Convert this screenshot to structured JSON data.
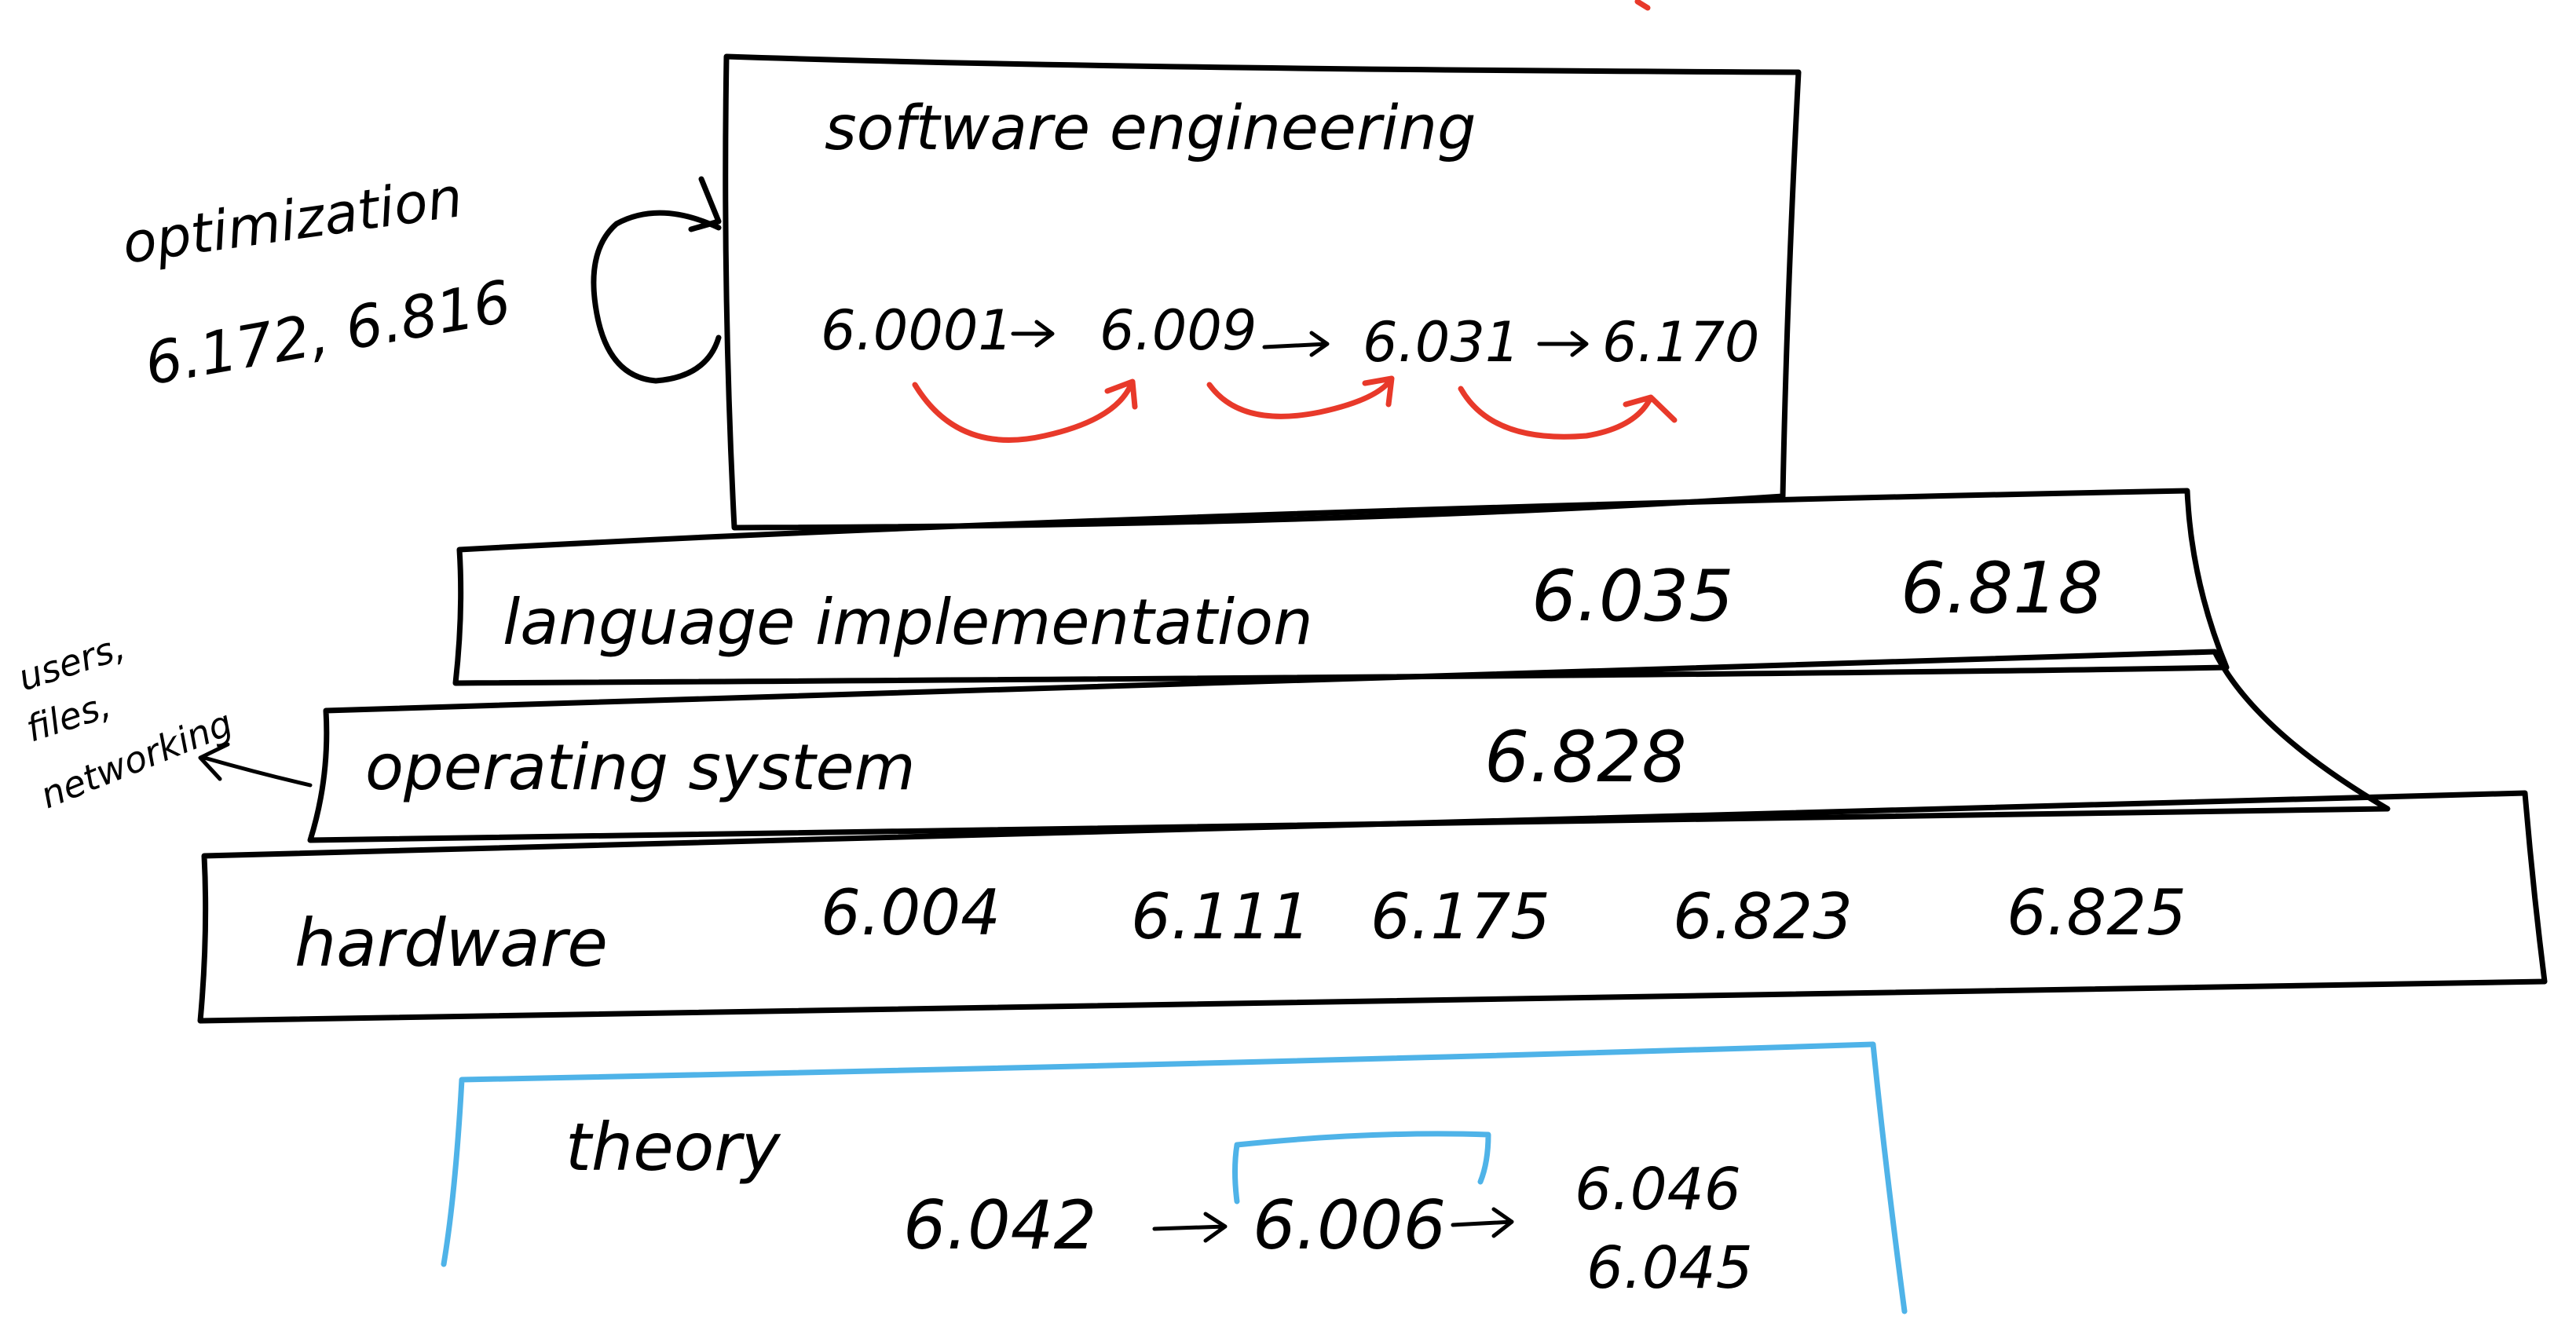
{
  "colors": {
    "ink": "#000000",
    "red_arrow": "#e8392a",
    "blue_bracket": "#4fb3e8"
  },
  "software_engineering": {
    "title": "software   engineering",
    "courses": [
      "6.0001",
      "6.009",
      "6.031",
      "6.170"
    ]
  },
  "optimization": {
    "label": "optimization",
    "courses": "6.172, 6.816"
  },
  "language_implementation": {
    "label": "language implementation",
    "courses": [
      "6.035",
      "6.818"
    ]
  },
  "operating_system": {
    "label": "operating system",
    "courses": [
      "6.828"
    ],
    "side_note": [
      "users,",
      "files,",
      "networking"
    ]
  },
  "hardware": {
    "label": "hardware",
    "courses": [
      "6.004",
      "6.111",
      "6.175",
      "6.823",
      "6.825"
    ]
  },
  "theory": {
    "label": "theory",
    "courses": [
      "6.042",
      "6.006",
      "6.046",
      "6.045"
    ]
  }
}
